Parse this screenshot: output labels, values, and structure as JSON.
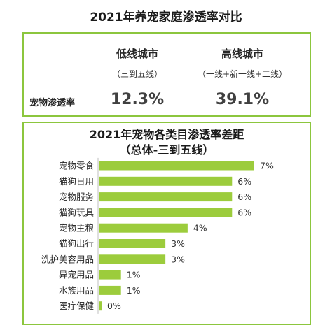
{
  "page_title": "2021年养宠家庭渗透率对比",
  "comparison": {
    "columns": [
      {
        "header": "低线城市",
        "sub": "（三到五线）",
        "value": "12.3%"
      },
      {
        "header": "高线城市",
        "sub": "（一线+新一线+二线）",
        "value": "39.1%"
      }
    ],
    "row_label": "宠物渗透率"
  },
  "chart_data": {
    "type": "bar",
    "orientation": "horizontal",
    "title": "2021年宠物各类目渗透率差距",
    "subtitle": "（总体-三到五线）",
    "categories": [
      "宠物零食",
      "猫狗日用",
      "宠物服务",
      "猫狗玩具",
      "宠物主粮",
      "猫狗出行",
      "洗护美容用品",
      "异宠用品",
      "水族用品",
      "医疗保健"
    ],
    "values": [
      7,
      6,
      6,
      6,
      4,
      3,
      3,
      1,
      1,
      0
    ],
    "labels": [
      "7%",
      "6%",
      "6%",
      "6%",
      "4%",
      "3%",
      "3%",
      "1%",
      "1%",
      "0%"
    ],
    "xlim": [
      0,
      7
    ],
    "grid": false,
    "colors": {
      "bar": "#9ccc3c",
      "border": "#8cc63e"
    }
  }
}
